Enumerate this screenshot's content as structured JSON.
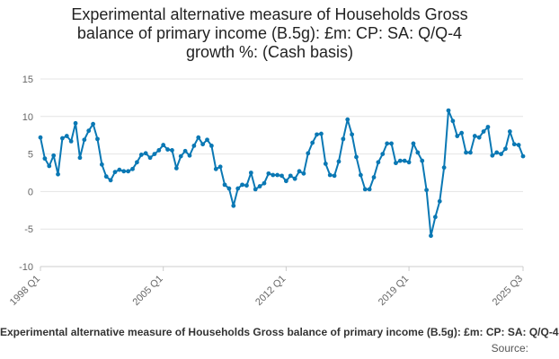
{
  "title_lines": [
    "Experimental alternative measure of Households Gross",
    "balance of primary income (B.5g): £m: CP: SA: Q/Q-4",
    "growth %: (Cash basis)"
  ],
  "legend_text": "Experimental alternative measure of Households Gross balance of primary income (B.5g): £m: CP: SA: Q/Q-4",
  "source_label": "Source:",
  "colors": {
    "series": "#0a78b4",
    "grid": "#e4e4e4",
    "axis": "#cccccc"
  },
  "chart_data": {
    "type": "line",
    "grid": true,
    "ylim": [
      -10,
      15
    ],
    "yticks": [
      -10,
      -5,
      0,
      5,
      10,
      15
    ],
    "xtick_labels": [
      "1998 Q1",
      "2005 Q1",
      "2012 Q1",
      "2019 Q1",
      "2025 Q3"
    ],
    "xtick_indices": [
      0,
      28,
      56,
      84,
      110
    ],
    "x_start": "1998 Q1",
    "x_end": "2025 Q3",
    "series": [
      {
        "values": [
          7.2,
          4.4,
          3.4,
          4.8,
          2.3,
          7.1,
          7.4,
          6.7,
          9.1,
          4.5,
          6.9,
          8.1,
          9.0,
          7.0,
          3.6,
          2.0,
          1.5,
          2.6,
          2.9,
          2.7,
          2.7,
          3.0,
          3.9,
          4.9,
          5.1,
          4.5,
          5.0,
          5.5,
          6.2,
          5.6,
          5.5,
          3.1,
          4.7,
          5.4,
          4.8,
          6.1,
          7.2,
          6.3,
          6.9,
          6.1,
          3.0,
          3.3,
          0.9,
          0.4,
          -1.9,
          0.4,
          0.9,
          0.8,
          2.5,
          0.3,
          0.7,
          1.1,
          2.4,
          2.2,
          2.2,
          2.1,
          1.4,
          2.1,
          1.7,
          2.7,
          2.4,
          5.1,
          6.5,
          7.6,
          7.7,
          3.7,
          2.2,
          2.1,
          4.0,
          7.0,
          9.6,
          7.6,
          4.6,
          2.2,
          0.3,
          0.3,
          1.9,
          3.9,
          5.0,
          6.4,
          6.4,
          3.8,
          4.1,
          4.1,
          3.9,
          6.4,
          5.2,
          4.1,
          0.2,
          -5.9,
          -3.4,
          -1.3,
          3.2,
          10.8,
          9.4,
          7.4,
          7.8,
          5.2,
          5.2,
          7.4,
          7.2,
          8.0,
          8.6,
          4.8,
          5.2,
          5.0,
          5.7,
          8.0,
          6.3,
          6.2,
          4.7
        ]
      }
    ]
  }
}
